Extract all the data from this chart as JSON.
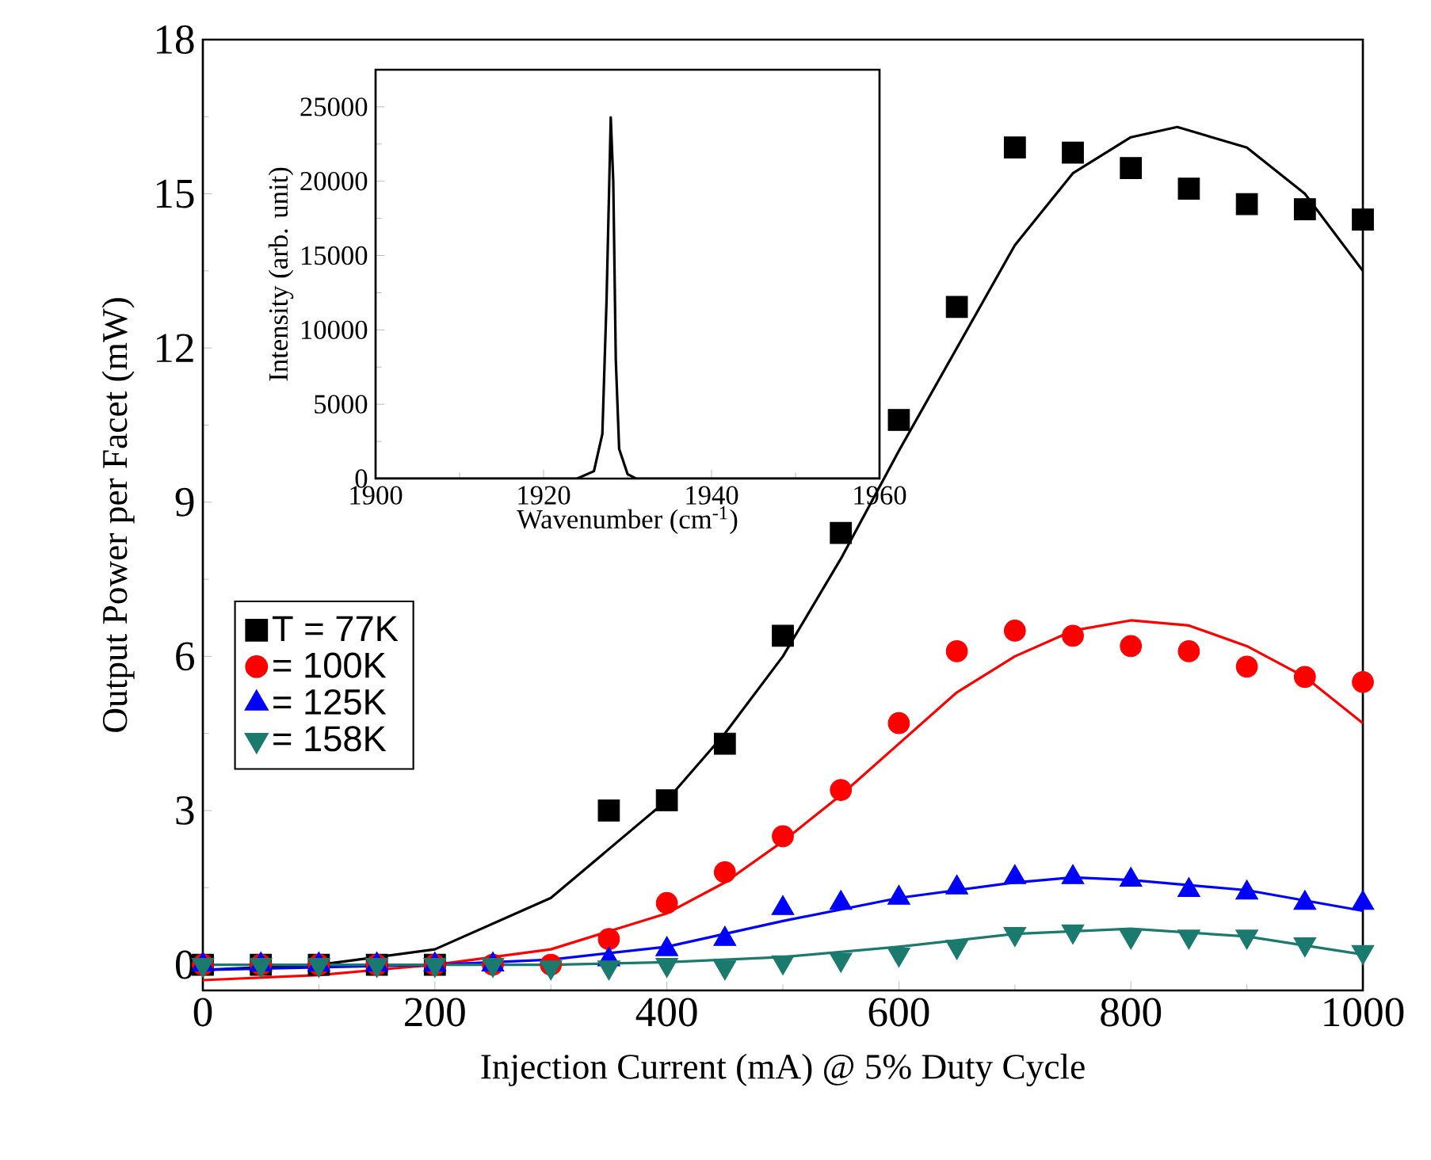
{
  "chart_data": [
    {
      "type": "scatter",
      "xlabel": "Injection Current (mA) @ 5% Duty Cycle",
      "ylabel": "Output Power per Facet (mW)",
      "xlim": [
        0,
        1000
      ],
      "ylim": [
        -0.5,
        18
      ],
      "xticks": [
        0,
        200,
        400,
        600,
        800,
        1000
      ],
      "yticks": [
        0,
        3,
        6,
        9,
        12,
        15,
        18
      ],
      "legend": "left",
      "series": [
        {
          "name": "T = 77K",
          "color": "#000000",
          "marker": "square",
          "x": [
            0,
            50,
            100,
            150,
            200,
            350,
            400,
            450,
            500,
            550,
            600,
            650,
            700,
            750,
            800,
            850,
            900,
            950,
            1000
          ],
          "values": [
            0,
            0,
            0,
            0,
            0,
            3.0,
            3.2,
            4.3,
            6.4,
            8.4,
            10.6,
            12.8,
            15.9,
            15.8,
            15.5,
            15.1,
            14.8,
            14.7,
            14.5
          ]
        },
        {
          "name": "= 100K",
          "color": "#ff0000",
          "marker": "circle",
          "x": [
            0,
            50,
            100,
            150,
            200,
            250,
            300,
            350,
            400,
            450,
            500,
            550,
            600,
            650,
            700,
            750,
            800,
            850,
            900,
            950,
            1000
          ],
          "values": [
            0,
            0,
            0,
            0,
            0,
            0,
            0,
            0.5,
            1.2,
            1.8,
            2.5,
            3.4,
            4.7,
            6.1,
            6.5,
            6.4,
            6.2,
            6.1,
            5.8,
            5.6,
            5.5
          ]
        },
        {
          "name": "= 125K",
          "color": "#0000ff",
          "marker": "triangle",
          "x": [
            0,
            50,
            100,
            150,
            200,
            250,
            300,
            350,
            400,
            450,
            500,
            550,
            600,
            650,
            700,
            750,
            800,
            850,
            900,
            950,
            1000
          ],
          "values": [
            0,
            0,
            0,
            0,
            0,
            0,
            null,
            0.1,
            0.3,
            0.5,
            1.1,
            1.2,
            1.3,
            1.5,
            1.7,
            1.7,
            1.65,
            1.45,
            1.4,
            1.2,
            1.2
          ]
        },
        {
          "name": "= 158K",
          "color": "#1a7a6e",
          "marker": "triangle-down",
          "x": [
            0,
            50,
            100,
            150,
            200,
            250,
            300,
            350,
            400,
            450,
            500,
            550,
            600,
            650,
            700,
            750,
            800,
            850,
            900,
            950,
            1000
          ],
          "values": [
            0,
            0,
            0,
            0,
            0,
            0,
            -0.05,
            -0.05,
            0,
            -0.05,
            0.05,
            0.1,
            0.2,
            0.35,
            0.6,
            0.65,
            0.55,
            0.55,
            0.55,
            0.4,
            0.25
          ]
        },
        {
          "type": "line",
          "color": "#000000",
          "x": [
            0,
            100,
            200,
            300,
            400,
            450,
            500,
            550,
            600,
            650,
            700,
            750,
            800,
            840,
            900,
            950,
            1000
          ],
          "values": [
            -0.1,
            0.0,
            0.3,
            1.3,
            3.2,
            4.5,
            6.0,
            7.9,
            10.0,
            12.0,
            14.0,
            15.4,
            16.1,
            16.3,
            15.9,
            15.0,
            13.5
          ]
        },
        {
          "type": "line",
          "color": "#ff0000",
          "x": [
            0,
            100,
            200,
            300,
            400,
            450,
            500,
            550,
            600,
            650,
            700,
            750,
            800,
            850,
            900,
            950,
            1000
          ],
          "values": [
            -0.3,
            -0.2,
            0.0,
            0.3,
            1.0,
            1.6,
            2.4,
            3.3,
            4.3,
            5.3,
            6.0,
            6.5,
            6.7,
            6.6,
            6.2,
            5.6,
            4.7
          ]
        },
        {
          "type": "line",
          "color": "#0000ff",
          "x": [
            0,
            200,
            300,
            400,
            500,
            600,
            700,
            750,
            800,
            900,
            1000
          ],
          "values": [
            -0.1,
            0,
            0.1,
            0.35,
            0.85,
            1.3,
            1.6,
            1.7,
            1.65,
            1.45,
            1.05
          ]
        },
        {
          "type": "line",
          "color": "#1a7a6e",
          "x": [
            0,
            300,
            400,
            500,
            600,
            700,
            800,
            900,
            1000
          ],
          "values": [
            0,
            0,
            0.05,
            0.15,
            0.35,
            0.6,
            0.7,
            0.55,
            0.2
          ]
        }
      ]
    },
    {
      "type": "line",
      "xlabel": "Wavenumber (cm$^{-1}$)",
      "ylabel": "Intensity (arb. unit)",
      "xlim": [
        1900,
        1960
      ],
      "ylim": [
        0,
        27500
      ],
      "xticks": [
        1900,
        1920,
        1940,
        1960
      ],
      "yticks": [
        0,
        5000,
        10000,
        15000,
        20000,
        25000
      ],
      "series": [
        {
          "color": "#000000",
          "x": [
            1900,
            1924,
            1926,
            1927,
            1927.5,
            1928,
            1928.3,
            1928.6,
            1929,
            1930,
            1931,
            1960
          ],
          "values": [
            0,
            0,
            500,
            3000,
            12000,
            24300,
            20000,
            8000,
            2000,
            300,
            0,
            0
          ]
        }
      ]
    }
  ]
}
